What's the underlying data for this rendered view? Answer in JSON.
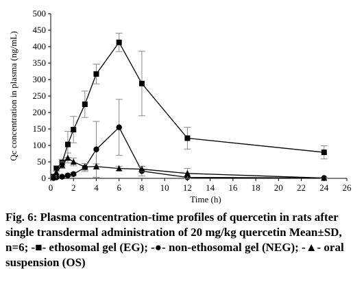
{
  "chart_data": {
    "type": "line",
    "xlabel": "Time (h)",
    "ylabel": "Qc concentration in plasma (ng/mL)",
    "xlim": [
      0,
      26
    ],
    "ylim": [
      0,
      500
    ],
    "xticks": [
      0,
      2,
      4,
      6,
      8,
      10,
      12,
      14,
      16,
      18,
      20,
      22,
      24,
      26
    ],
    "yticks": [
      0,
      50,
      100,
      150,
      200,
      250,
      300,
      350,
      400,
      450,
      500
    ],
    "grid": false,
    "legend": "none",
    "series": [
      {
        "name": "EG",
        "marker": "square",
        "x": [
          0.25,
          0.5,
          1,
          1.5,
          2,
          3,
          4,
          6,
          8,
          12,
          24
        ],
        "y": [
          5,
          30,
          48,
          103,
          148,
          225,
          317,
          413,
          288,
          122,
          79
        ],
        "err": [
          3,
          8,
          10,
          40,
          40,
          40,
          30,
          28,
          98,
          33,
          20
        ]
      },
      {
        "name": "NEG",
        "marker": "circle",
        "x": [
          0.25,
          0.5,
          1,
          1.5,
          2,
          3,
          4,
          6,
          8,
          12,
          24
        ],
        "y": [
          1,
          3,
          5,
          9,
          13,
          33,
          88,
          155,
          22,
          3,
          1
        ],
        "err": [
          1,
          2,
          3,
          4,
          5,
          12,
          85,
          85,
          15,
          2,
          1
        ]
      },
      {
        "name": "OS",
        "marker": "triangle",
        "x": [
          0.25,
          0.5,
          1,
          1.5,
          2,
          3,
          4,
          6,
          8,
          12,
          24
        ],
        "y": [
          5,
          18,
          40,
          62,
          50,
          35,
          36,
          30,
          28,
          15,
          1
        ],
        "err": [
          3,
          5,
          10,
          15,
          12,
          10,
          8,
          6,
          8,
          15,
          1
        ]
      }
    ]
  },
  "caption": {
    "text": "Fig. 6: Plasma concentration-time profiles of quercetin in rats after single transdermal administration of 20 mg/kg quercetin Mean±SD, n=6; -■- ethosomal gel (EG); -●- non-ethosomal gel (NEG); -▲- oral suspension (OS)"
  }
}
